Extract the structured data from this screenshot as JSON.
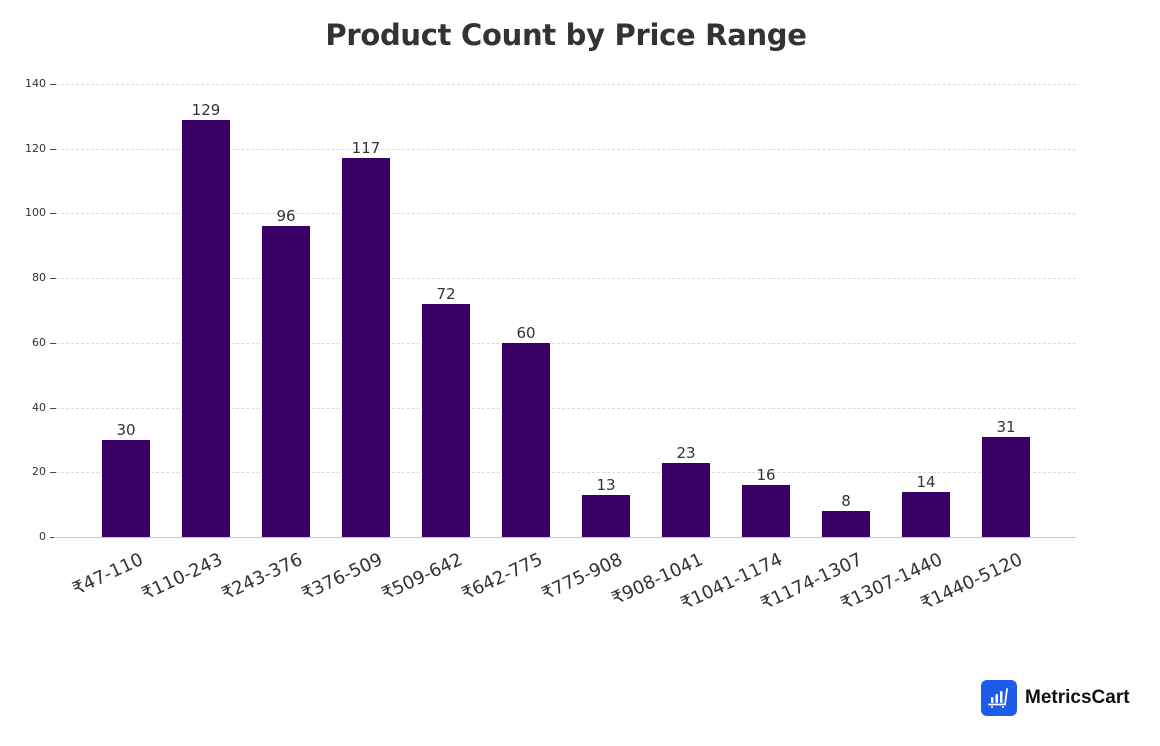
{
  "chart_data": {
    "type": "bar",
    "title": "Product Count by Price Range",
    "xlabel": "",
    "ylabel": "",
    "ylim": [
      0,
      140
    ],
    "yticks": [
      0,
      20,
      40,
      60,
      80,
      100,
      120,
      140
    ],
    "grid": true,
    "legend": null,
    "categories": [
      "₹47-110",
      "₹110-243",
      "₹243-376",
      "₹376-509",
      "₹509-642",
      "₹642-775",
      "₹775-908",
      "₹908-1041",
      "₹1041-1174",
      "₹1174-1307",
      "₹1307-1440",
      "₹1440-5120"
    ],
    "values": [
      30,
      129,
      96,
      117,
      72,
      60,
      13,
      23,
      16,
      8,
      14,
      31
    ],
    "bar_color": "#3b0066",
    "data_labels": [
      "30",
      "129",
      "96",
      "117",
      "72",
      "60",
      "13",
      "23",
      "16",
      "8",
      "14",
      "31"
    ]
  },
  "branding": {
    "name": "MetricsCart",
    "icon": "bar-chart-cart-icon",
    "icon_color": "#1b5de8"
  }
}
